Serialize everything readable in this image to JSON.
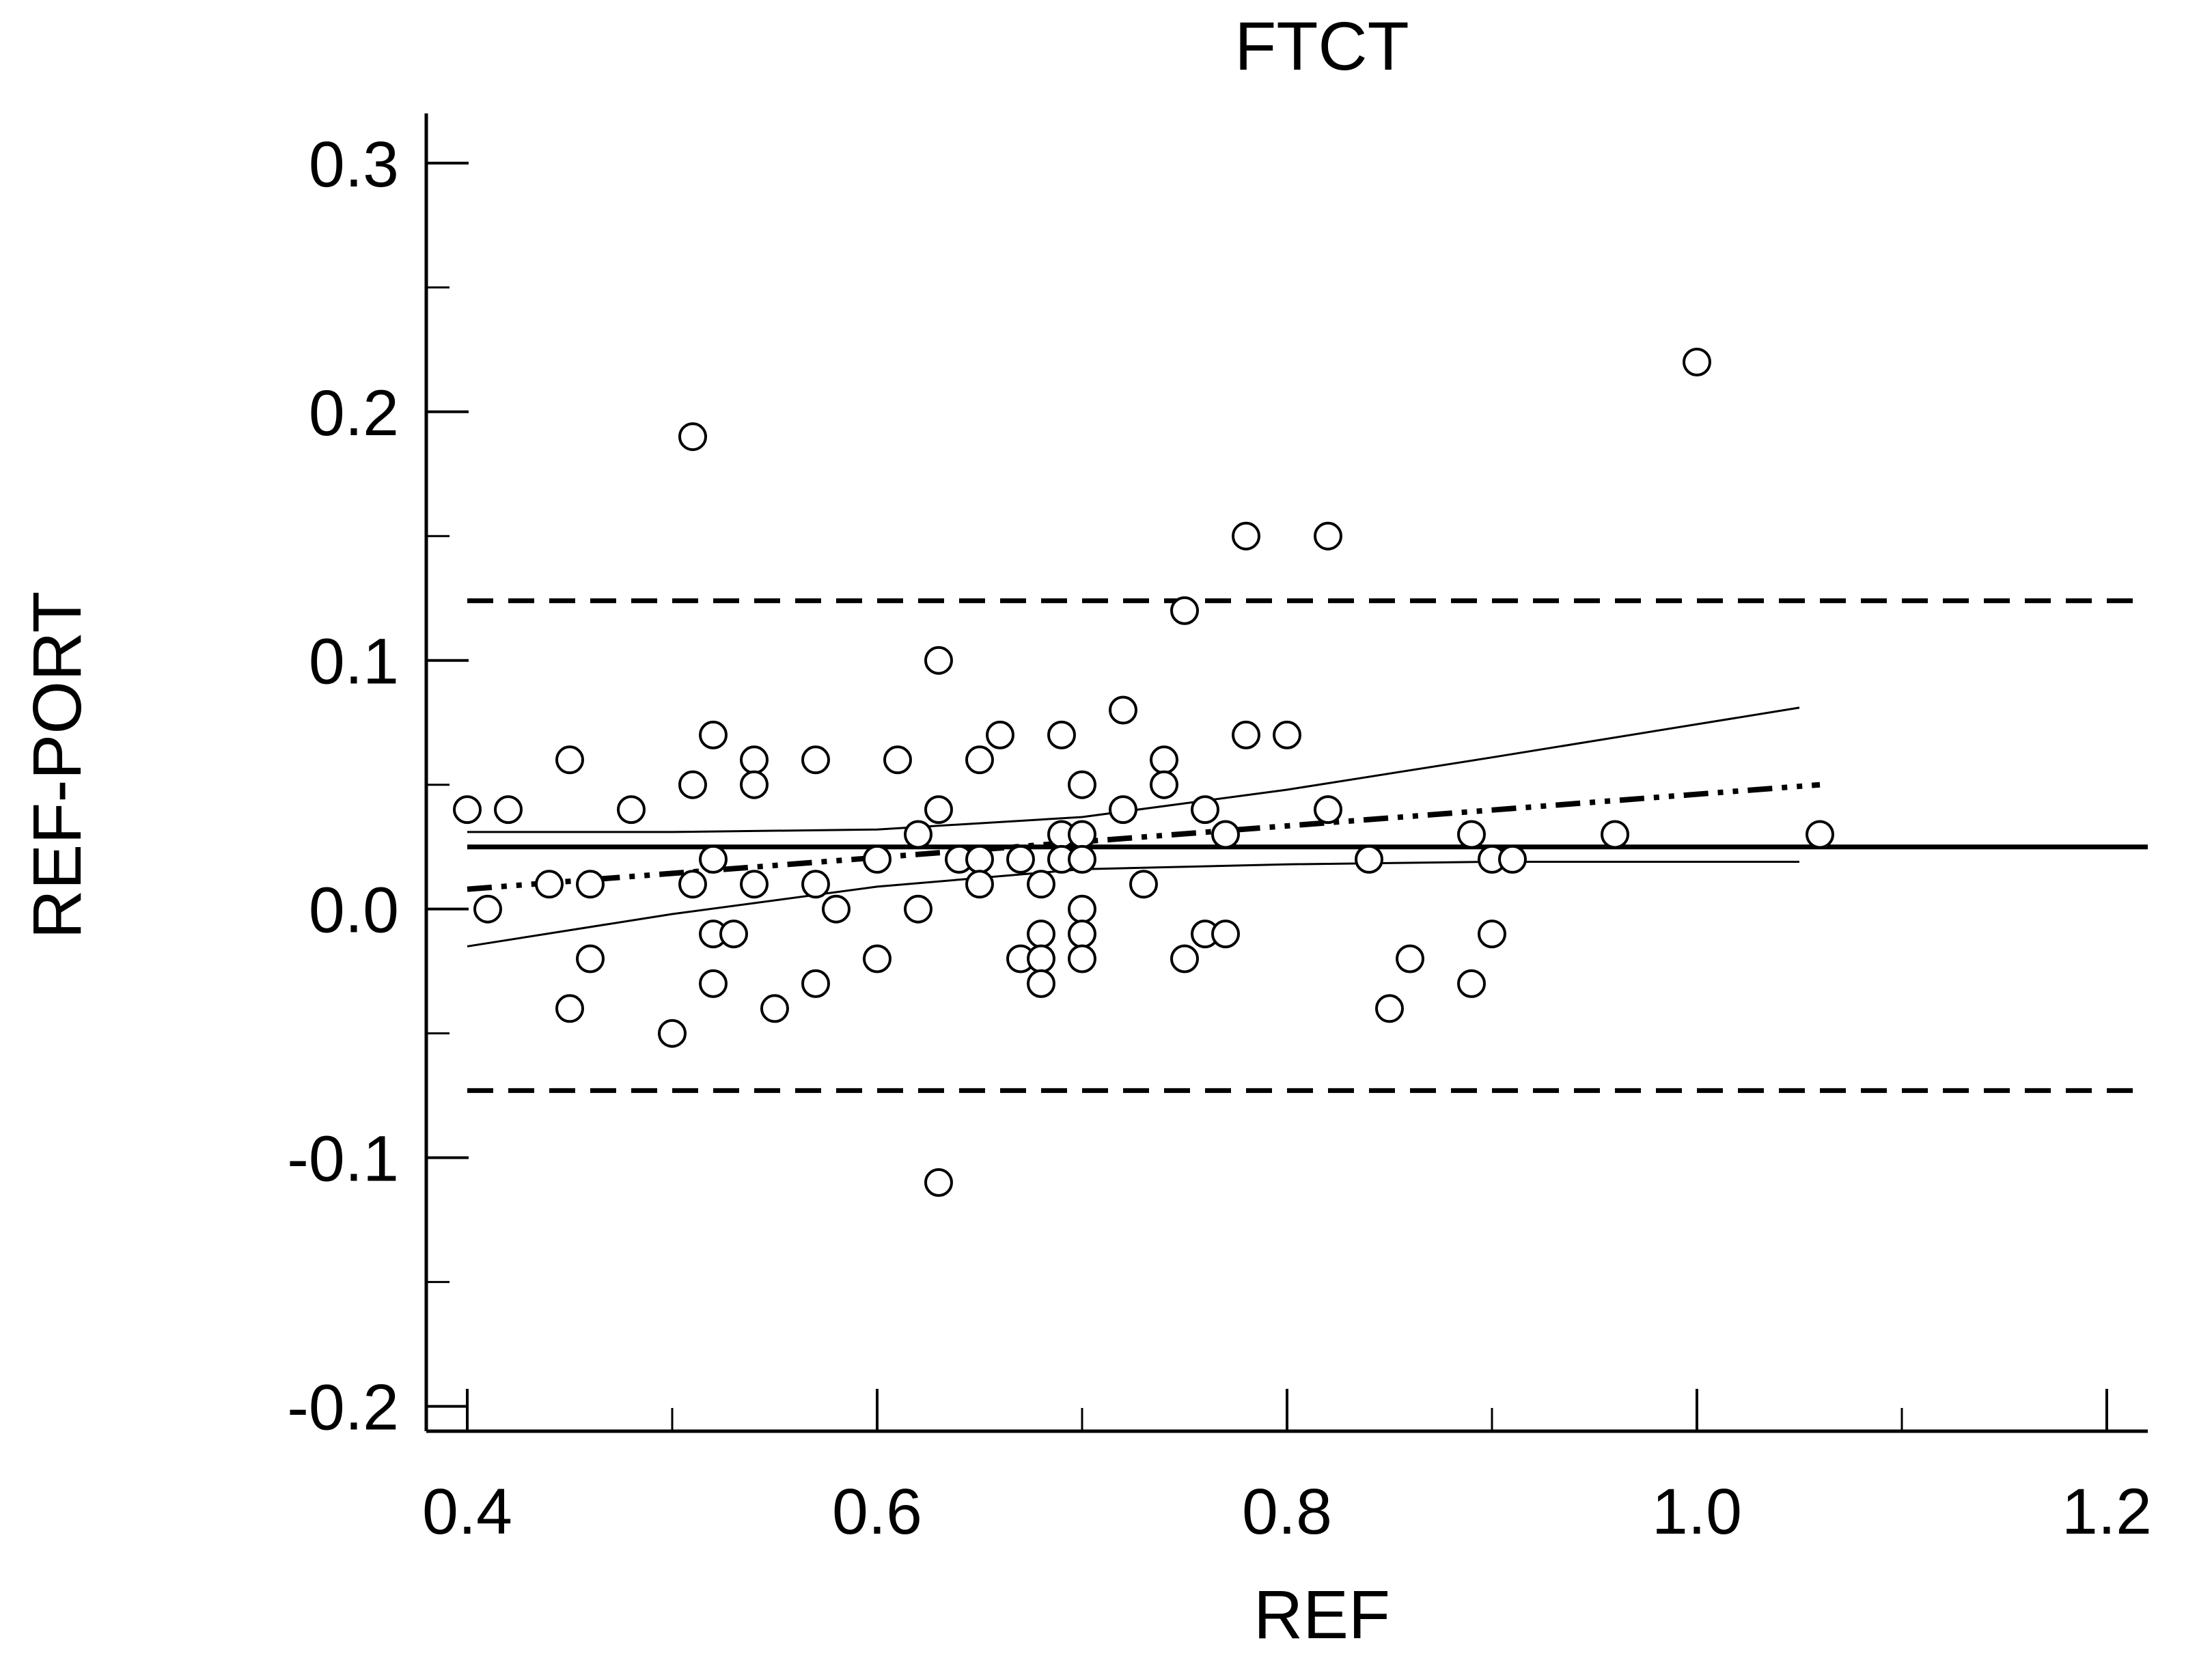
{
  "chart_data": {
    "type": "scatter",
    "title": "FTCT",
    "xlabel": "REF",
    "ylabel": "REF-PORT",
    "xlim": [
      0.38,
      1.22
    ],
    "ylim": [
      -0.21,
      0.32
    ],
    "x_ticks": [
      0.4,
      0.6,
      0.8,
      1.0,
      1.2
    ],
    "x_tick_labels": [
      "0.4",
      "0.6",
      "0.8",
      "1.0",
      "1.2"
    ],
    "x_minor_ticks": [
      0.5,
      0.7,
      0.9,
      1.1
    ],
    "y_ticks": [
      -0.2,
      -0.1,
      0.0,
      0.1,
      0.2,
      0.3
    ],
    "y_tick_labels": [
      "-0.2",
      "-0.1",
      "0.0",
      "0.1",
      "0.2",
      "0.3"
    ],
    "y_minor_ticks": [
      -0.15,
      -0.05,
      0.05,
      0.15,
      0.25
    ],
    "grid": false,
    "points": [
      [
        0.4,
        0.04
      ],
      [
        0.41,
        0.0
      ],
      [
        0.42,
        0.04
      ],
      [
        0.44,
        0.01
      ],
      [
        0.45,
        0.06
      ],
      [
        0.45,
        -0.04
      ],
      [
        0.46,
        0.01
      ],
      [
        0.46,
        -0.02
      ],
      [
        0.48,
        0.04
      ],
      [
        0.5,
        -0.05
      ],
      [
        0.51,
        0.19
      ],
      [
        0.51,
        0.05
      ],
      [
        0.51,
        0.01
      ],
      [
        0.52,
        0.07
      ],
      [
        0.52,
        0.02
      ],
      [
        0.52,
        -0.01
      ],
      [
        0.52,
        -0.03
      ],
      [
        0.53,
        -0.01
      ],
      [
        0.54,
        0.06
      ],
      [
        0.54,
        0.05
      ],
      [
        0.54,
        0.01
      ],
      [
        0.55,
        -0.04
      ],
      [
        0.57,
        0.06
      ],
      [
        0.57,
        0.01
      ],
      [
        0.57,
        -0.03
      ],
      [
        0.58,
        0.0
      ],
      [
        0.6,
        0.02
      ],
      [
        0.6,
        -0.02
      ],
      [
        0.61,
        0.06
      ],
      [
        0.62,
        0.03
      ],
      [
        0.62,
        0.0
      ],
      [
        0.63,
        0.1
      ],
      [
        0.63,
        0.04
      ],
      [
        0.63,
        -0.11
      ],
      [
        0.64,
        0.02
      ],
      [
        0.65,
        0.06
      ],
      [
        0.65,
        0.02
      ],
      [
        0.65,
        0.01
      ],
      [
        0.66,
        0.07
      ],
      [
        0.67,
        0.02
      ],
      [
        0.67,
        -0.02
      ],
      [
        0.68,
        0.01
      ],
      [
        0.68,
        -0.01
      ],
      [
        0.68,
        -0.02
      ],
      [
        0.68,
        -0.03
      ],
      [
        0.69,
        0.07
      ],
      [
        0.69,
        0.03
      ],
      [
        0.69,
        0.02
      ],
      [
        0.7,
        0.05
      ],
      [
        0.7,
        0.03
      ],
      [
        0.7,
        0.02
      ],
      [
        0.7,
        0.0
      ],
      [
        0.7,
        -0.01
      ],
      [
        0.7,
        -0.02
      ],
      [
        0.72,
        0.08
      ],
      [
        0.72,
        0.04
      ],
      [
        0.73,
        0.01
      ],
      [
        0.74,
        0.06
      ],
      [
        0.74,
        0.05
      ],
      [
        0.75,
        0.12
      ],
      [
        0.75,
        -0.02
      ],
      [
        0.76,
        0.04
      ],
      [
        0.76,
        -0.01
      ],
      [
        0.77,
        0.03
      ],
      [
        0.77,
        -0.01
      ],
      [
        0.78,
        0.15
      ],
      [
        0.78,
        0.07
      ],
      [
        0.8,
        0.07
      ],
      [
        0.82,
        0.15
      ],
      [
        0.82,
        0.04
      ],
      [
        0.84,
        0.02
      ],
      [
        0.85,
        -0.04
      ],
      [
        0.86,
        -0.02
      ],
      [
        0.89,
        0.03
      ],
      [
        0.89,
        -0.03
      ],
      [
        0.9,
        0.02
      ],
      [
        0.9,
        -0.01
      ],
      [
        0.91,
        0.02
      ],
      [
        0.96,
        0.03
      ],
      [
        1.0,
        0.22
      ],
      [
        1.06,
        0.03
      ]
    ],
    "reference_lines": {
      "mean_difference": 0.025,
      "upper_limit_of_agreement": 0.124,
      "lower_limit_of_agreement": -0.073
    },
    "regression_line": {
      "x": [
        0.4,
        1.06
      ],
      "y": [
        0.008,
        0.05
      ]
    },
    "confidence_band": {
      "upper": {
        "x": [
          0.4,
          0.5,
          0.6,
          0.7,
          0.8,
          0.9,
          1.05
        ],
        "y": [
          0.031,
          0.031,
          0.032,
          0.037,
          0.048,
          0.061,
          0.081
        ]
      },
      "lower": {
        "x": [
          0.4,
          0.5,
          0.6,
          0.7,
          0.8,
          0.9,
          1.05
        ],
        "y": [
          -0.015,
          -0.002,
          0.009,
          0.016,
          0.018,
          0.019,
          0.019
        ]
      }
    }
  }
}
